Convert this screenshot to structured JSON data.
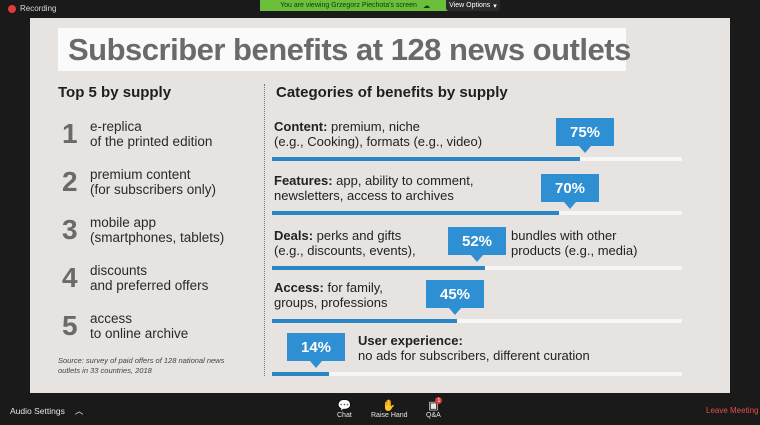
{
  "zoom": {
    "recording_label": "Recording",
    "share_banner": "You are viewing Grzegorz Piechota's screen",
    "view_options": "View Options",
    "audio_settings": "Audio Settings",
    "chat": "Chat",
    "raise_hand": "Raise Hand",
    "qa": "Q&A",
    "qa_badge": "1",
    "leave": "Leave Meeting",
    "colors": {
      "leave": "#e2504a",
      "banner": "#6bbf3a",
      "recording": "#e03a3a"
    }
  },
  "slide": {
    "title": "Subscriber benefits at 128 news outlets",
    "left_heading": "Top 5 by supply",
    "right_heading": "Categories of benefits by supply",
    "top5": [
      {
        "num": "1",
        "line1": "e-replica",
        "line2": "of the printed edition"
      },
      {
        "num": "2",
        "line1": "premium content",
        "line2": "(for subscribers only)"
      },
      {
        "num": "3",
        "line1": "mobile app",
        "line2": "(smartphones, tablets)"
      },
      {
        "num": "4",
        "line1": "discounts",
        "line2": "and preferred offers"
      },
      {
        "num": "5",
        "line1": "access",
        "line2": "to online archive"
      }
    ],
    "source_line1": "Source: survey of paid offers of 128 national news",
    "source_line2": "outlets in 33 countries, 2018",
    "categories": [
      {
        "name": "Content:",
        "line1": " premium, niche",
        "line2": "(e.g., Cooking), formats (e.g., video)",
        "pct": "75%",
        "value": 75
      },
      {
        "name": "Features:",
        "line1": " app, ability to comment,",
        "line2": "newsletters, access to archives",
        "pct": "70%",
        "value": 70
      },
      {
        "name": "Deals:",
        "line1": " perks and gifts",
        "line2": "(e.g., discounts, events),",
        "extra1": "bundles with other",
        "extra2": "products (e.g., media)",
        "pct": "52%",
        "value": 52
      },
      {
        "name": "Access:",
        "line1": " for family,",
        "line2": "groups, professions",
        "pct": "45%",
        "value": 45
      },
      {
        "name": "User experience:",
        "line1": "",
        "line2": "no ads for subscribers, different curation",
        "pct": "14%",
        "value": 14
      }
    ],
    "bar_color": "#2b86c6"
  }
}
